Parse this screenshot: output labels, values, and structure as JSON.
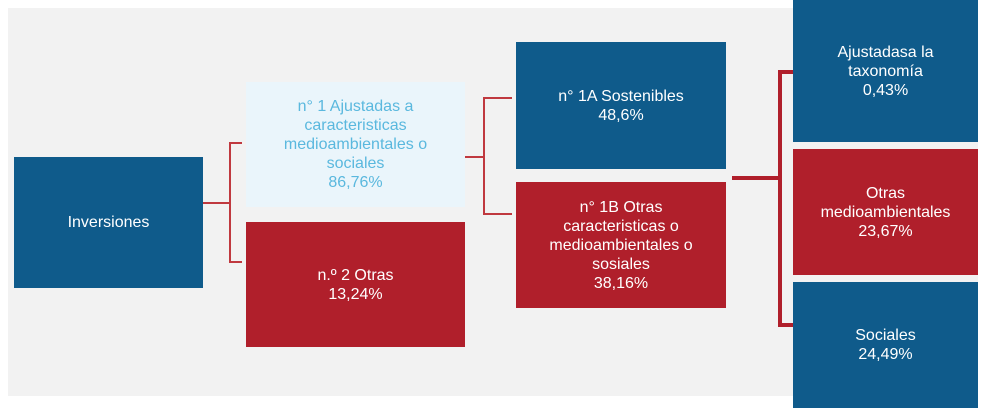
{
  "nodes": [
    {
      "lines": [
        "Inversiones"
      ]
    },
    {
      "lines": [
        "n° 1 Ajustadas a",
        "caracteristicas",
        "medioambientales o",
        "sociales"
      ],
      "value": "86,76%"
    },
    {
      "lines": [
        "n.º 2 Otras"
      ],
      "value": "13,24%"
    },
    {
      "lines": [
        "n° 1A Sostenibles"
      ],
      "value": "48,6%"
    },
    {
      "lines": [
        "n° 1B Otras",
        "caracteristicas o",
        "medioambientales o",
        "sosiales"
      ],
      "value": "38,16%"
    },
    {
      "lines": [
        "Ajustadasa la",
        "taxonomía"
      ],
      "value": "0,43%"
    },
    {
      "lines": [
        "Otras",
        "medioambientales"
      ],
      "value": "23,67%"
    },
    {
      "lines": [
        "Sociales"
      ],
      "value": "24,49%"
    }
  ]
}
